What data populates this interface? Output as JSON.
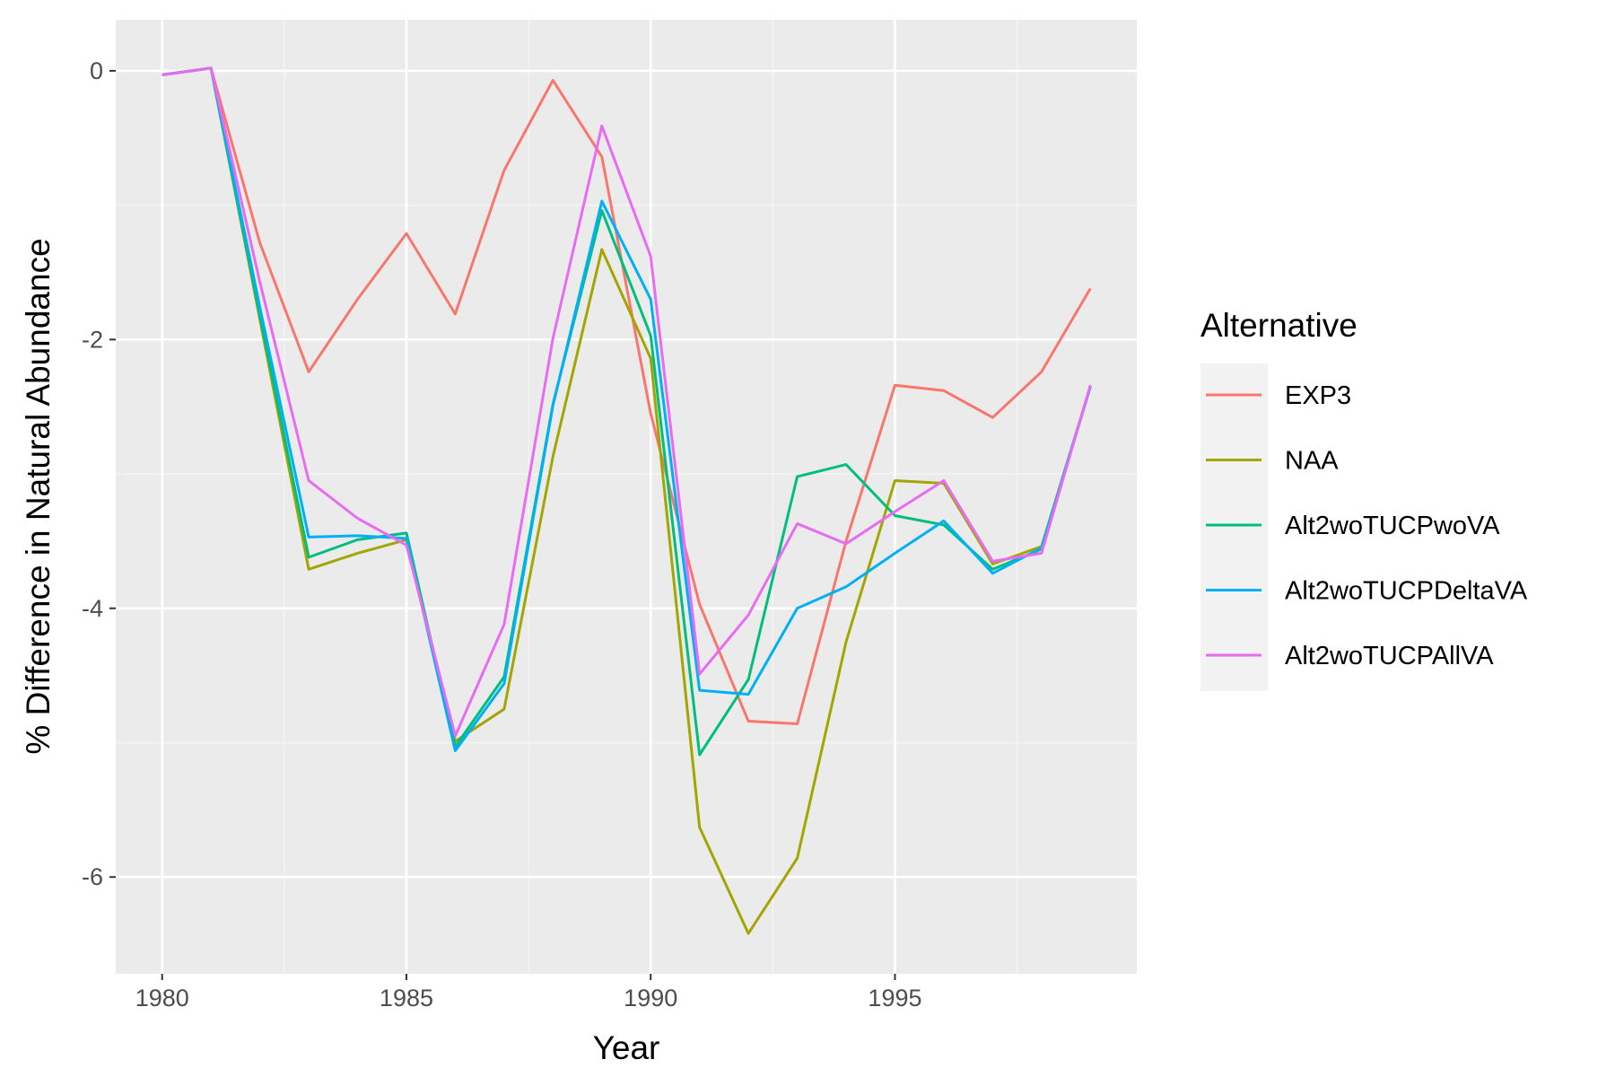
{
  "chart_data": {
    "type": "line",
    "title": "",
    "xlabel": "Year",
    "ylabel": "% Difference in Natural Abundance",
    "xlim": [
      1979.05,
      1999.95
    ],
    "ylim": [
      -6.72,
      0.38
    ],
    "x_ticks": [
      1980,
      1985,
      1990,
      1995
    ],
    "x_tick_labels": [
      "1980",
      "1985",
      "1990",
      "1995"
    ],
    "y_ticks": [
      0,
      -2,
      -4,
      -6
    ],
    "y_tick_labels": [
      "0",
      "-2",
      "-4",
      "-6"
    ],
    "grid": true,
    "legend": {
      "title": "Alternative",
      "position": "right"
    },
    "x": [
      1980,
      1981,
      1982,
      1983,
      1984,
      1985,
      1986,
      1987,
      1988,
      1989,
      1990,
      1991,
      1992,
      1993,
      1994,
      1995,
      1996,
      1997,
      1998,
      1999
    ],
    "series": [
      {
        "name": "EXP3",
        "color": "#F8766D",
        "values": [
          -0.03,
          0.02,
          -1.28,
          -2.24,
          -1.7,
          -1.21,
          -1.81,
          -0.74,
          -0.07,
          -0.64,
          -2.55,
          -3.97,
          -4.84,
          -4.86,
          -3.5,
          -2.34,
          -2.38,
          -2.58,
          -2.24,
          -1.62
        ]
      },
      {
        "name": "NAA",
        "color": "#A3A500",
        "values": [
          -0.03,
          0.02,
          -1.85,
          -3.71,
          -3.59,
          -3.49,
          -4.99,
          -4.75,
          -2.87,
          -1.33,
          -2.14,
          -5.63,
          -6.42,
          -5.86,
          -4.25,
          -3.05,
          -3.07,
          -3.67,
          -3.54,
          -2.35
        ]
      },
      {
        "name": "Alt2woTUCPwoVA",
        "color": "#00BF7D",
        "values": [
          -0.03,
          0.02,
          -1.82,
          -3.62,
          -3.49,
          -3.44,
          -5.03,
          -4.51,
          -2.48,
          -1.04,
          -1.97,
          -5.09,
          -4.53,
          -3.02,
          -2.93,
          -3.31,
          -3.38,
          -3.71,
          -3.56,
          -2.35
        ]
      },
      {
        "name": "Alt2woTUCPDeltaVA",
        "color": "#00B0F6",
        "values": [
          -0.03,
          0.02,
          -1.76,
          -3.47,
          -3.46,
          -3.48,
          -5.06,
          -4.56,
          -2.49,
          -0.97,
          -1.7,
          -4.61,
          -4.64,
          -4.0,
          -3.84,
          -3.59,
          -3.35,
          -3.74,
          -3.55,
          -2.35
        ]
      },
      {
        "name": "Alt2woTUCPAllVA",
        "color": "#E76BF3",
        "values": [
          -0.03,
          0.02,
          -1.57,
          -3.05,
          -3.33,
          -3.53,
          -4.95,
          -4.12,
          -1.99,
          -0.41,
          -1.38,
          -4.49,
          -4.05,
          -3.37,
          -3.52,
          -3.28,
          -3.05,
          -3.65,
          -3.59,
          -2.34
        ]
      }
    ]
  },
  "colors": {
    "panel_background": "#EBEBEB",
    "grid_major": "#FFFFFF",
    "grid_minor": "#F5F5F5",
    "legend_key_background": "#F2F2F2"
  }
}
